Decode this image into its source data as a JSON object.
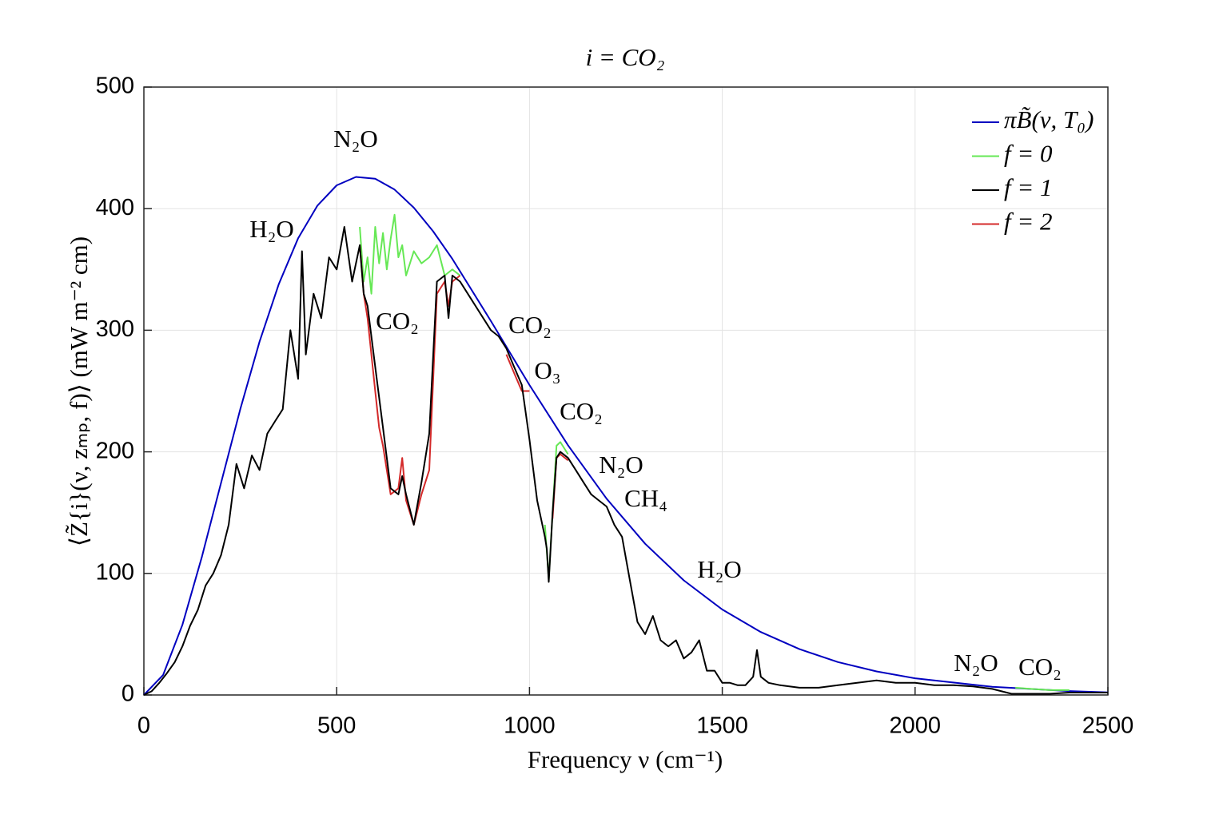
{
  "chart_data": {
    "type": "line",
    "title": "i = CO₂",
    "xlabel": "Frequency ν (cm⁻¹)",
    "ylabel": "⟨Z̃{i}(ν, zₘₚ, f)⟩ (mW m⁻² cm)",
    "xlim": [
      0,
      2500
    ],
    "ylim": [
      0,
      500
    ],
    "xticks": [
      0,
      500,
      1000,
      1500,
      2000,
      2500
    ],
    "yticks": [
      0,
      100,
      200,
      300,
      400,
      500
    ],
    "grid": true,
    "legend": "upper right",
    "series": [
      {
        "name": "πB̃(ν, T₀)",
        "color": "#0000c0",
        "x": [
          0,
          50,
          100,
          150,
          200,
          250,
          300,
          350,
          400,
          450,
          500,
          550,
          600,
          650,
          700,
          750,
          800,
          900,
          1000,
          1100,
          1200,
          1300,
          1400,
          1500,
          1600,
          1700,
          1800,
          1900,
          2000,
          2200,
          2400,
          2500
        ],
        "values": [
          0,
          16.5,
          57.7,
          113.2,
          174.4,
          235.1,
          290.6,
          338,
          375.7,
          402.5,
          419.2,
          426.1,
          424.6,
          415.7,
          400.8,
          381.4,
          358.7,
          307.5,
          254.9,
          205.4,
          161.4,
          124.4,
          94.3,
          70.3,
          51.8,
          37.7,
          27.1,
          19.4,
          13.7,
          6.7,
          3.2,
          2.2
        ]
      },
      {
        "name": "f = 0",
        "color": "#66e855",
        "x": [
          560,
          570,
          580,
          590,
          600,
          610,
          620,
          630,
          640,
          650,
          660,
          670,
          680,
          700,
          720,
          740,
          760,
          780,
          800,
          820,
          1000,
          1040,
          1050,
          1060,
          1070,
          1080,
          1100,
          2200,
          2260,
          2300,
          2350,
          2400
        ],
        "values": [
          385,
          340,
          360,
          330,
          385,
          355,
          380,
          350,
          375,
          395,
          360,
          370,
          345,
          365,
          355,
          360,
          370,
          345,
          350,
          345,
          null,
          140,
          95,
          150,
          205,
          208,
          198,
          null,
          6,
          5,
          4,
          4
        ]
      },
      {
        "name": "f = 1",
        "color": "#000000",
        "x": [
          0,
          20,
          40,
          60,
          80,
          100,
          120,
          140,
          160,
          180,
          200,
          220,
          240,
          260,
          280,
          300,
          320,
          340,
          360,
          380,
          400,
          410,
          420,
          440,
          460,
          480,
          500,
          520,
          540,
          560,
          570,
          580,
          600,
          620,
          640,
          660,
          670,
          680,
          700,
          720,
          740,
          760,
          780,
          790,
          800,
          820,
          840,
          860,
          880,
          900,
          920,
          940,
          960,
          980,
          1000,
          1020,
          1040,
          1045,
          1050,
          1060,
          1070,
          1080,
          1100,
          1120,
          1140,
          1160,
          1180,
          1200,
          1220,
          1240,
          1260,
          1280,
          1300,
          1320,
          1340,
          1360,
          1380,
          1400,
          1420,
          1440,
          1460,
          1480,
          1500,
          1520,
          1540,
          1560,
          1580,
          1590,
          1600,
          1620,
          1650,
          1700,
          1750,
          1800,
          1850,
          1900,
          1950,
          2000,
          2050,
          2100,
          2150,
          2200,
          2250,
          2300,
          2350,
          2400,
          2450,
          2500
        ],
        "values": [
          0,
          3,
          10,
          18,
          27,
          40,
          57,
          70,
          90,
          100,
          115,
          140,
          190,
          170,
          197,
          185,
          215,
          225,
          235,
          300,
          260,
          365,
          280,
          330,
          310,
          360,
          350,
          385,
          340,
          370,
          330,
          320,
          270,
          220,
          170,
          165,
          180,
          165,
          140,
          175,
          215,
          340,
          345,
          310,
          345,
          340,
          330,
          320,
          310,
          300,
          295,
          285,
          270,
          255,
          210,
          160,
          130,
          120,
          93,
          150,
          195,
          200,
          195,
          185,
          175,
          165,
          160,
          155,
          140,
          130,
          95,
          60,
          50,
          65,
          45,
          40,
          45,
          30,
          35,
          45,
          20,
          20,
          10,
          10,
          8,
          8,
          15,
          37,
          15,
          10,
          8,
          6,
          6,
          8,
          10,
          12,
          10,
          10,
          8,
          8,
          7,
          5,
          1,
          1,
          1,
          2,
          2,
          2
        ]
      },
      {
        "name": "f = 2",
        "color": "#d42a2a",
        "x": [
          560,
          570,
          580,
          590,
          600,
          610,
          620,
          640,
          660,
          670,
          680,
          700,
          720,
          740,
          760,
          780,
          790,
          800,
          820,
          900,
          940,
          960,
          980,
          1000,
          1040,
          1060,
          1070,
          1080,
          1100
        ],
        "values": [
          370,
          330,
          310,
          280,
          250,
          220,
          205,
          165,
          170,
          195,
          160,
          140,
          165,
          185,
          330,
          340,
          320,
          340,
          345,
          null,
          280,
          265,
          250,
          250,
          null,
          145,
          195,
          198,
          193
        ]
      }
    ],
    "annotations": [
      "N₂O",
      "H₂O",
      "CO₂",
      "CO₂",
      "O₃",
      "CO₂",
      "N₂O",
      "CH₄",
      "H₂O",
      "N₂O",
      "CO₂"
    ]
  }
}
